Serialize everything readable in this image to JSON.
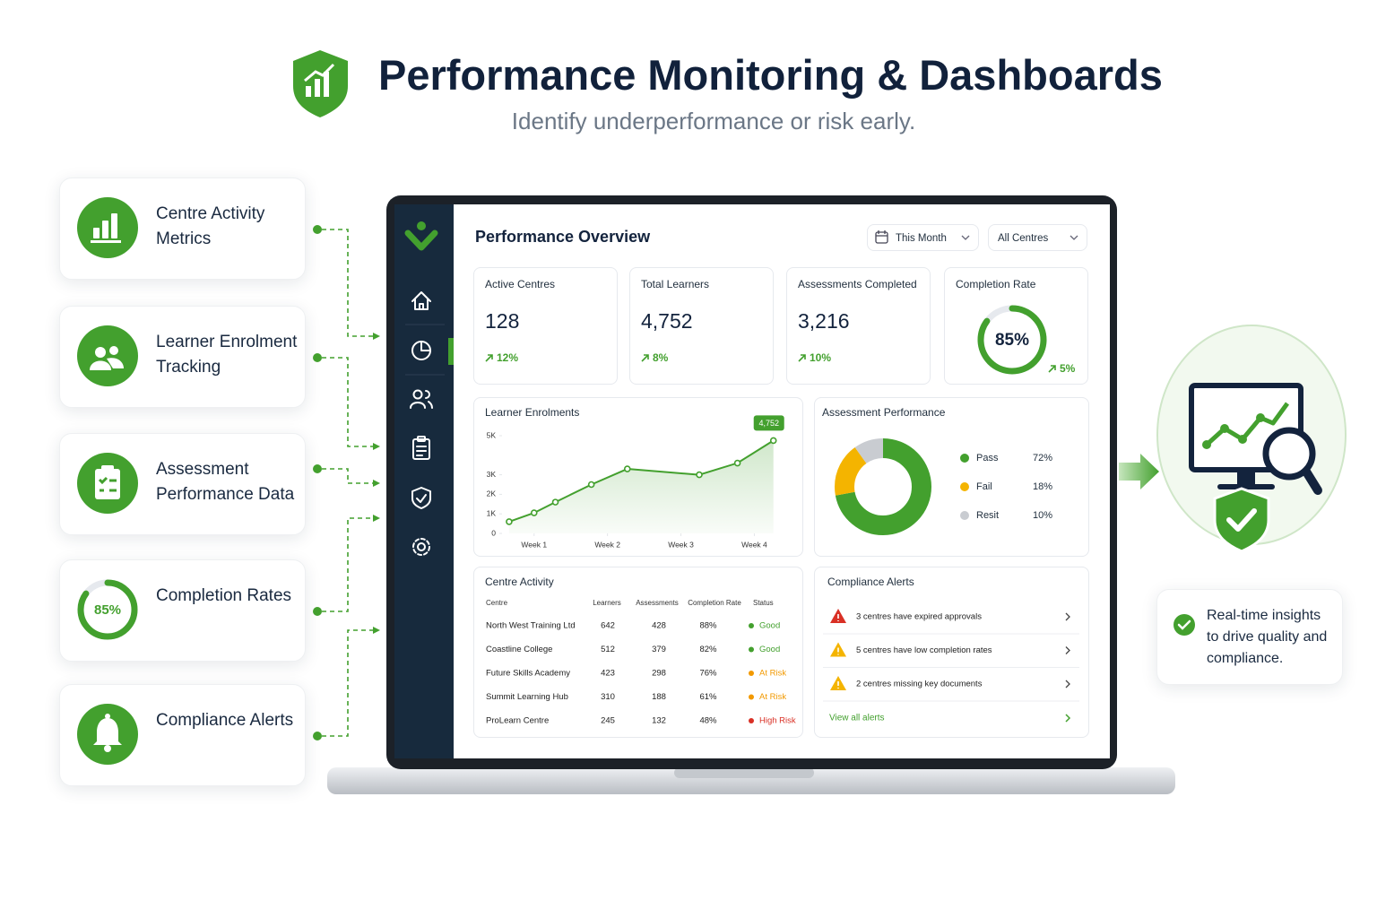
{
  "header": {
    "title": "Performance Monitoring & Dashboards",
    "subtitle": "Identify underperformance or risk early."
  },
  "features": [
    {
      "label": "Centre Activity Metrics"
    },
    {
      "label": "Learner Enrolment Tracking"
    },
    {
      "label": "Assessment Performance Data"
    },
    {
      "label": "Completion Rates",
      "badge": {
        "value": 85,
        "label": "85%"
      }
    },
    {
      "label": "Compliance Alerts"
    }
  ],
  "dashboard": {
    "title": "Performance Overview",
    "filters": [
      "This Month",
      "All Centres"
    ],
    "kpis": [
      {
        "label": "Active Centres",
        "value": "128",
        "change": "12%"
      },
      {
        "label": "Total Learners",
        "value": "4,752",
        "change": "8%"
      },
      {
        "label": "Assessments Completed",
        "value": "3,216",
        "change": "10%"
      },
      {
        "label": "Completion Rate",
        "value": {
          "value": 85,
          "label": "85%"
        },
        "change": "5%"
      }
    ],
    "enrolments": {
      "type": "line",
      "title": "Learner Enrolments",
      "x": [
        0.66,
        1.0,
        1.29,
        1.78,
        2.27,
        3.25,
        3.77,
        4.26
      ],
      "values": [
        600,
        1050,
        1600,
        2500,
        3300,
        3000,
        3600,
        4752
      ],
      "value_labels": [
        null,
        null,
        null,
        null,
        null,
        null,
        null,
        "4,752"
      ],
      "color": "#43a02e",
      "xlim": [
        0.6,
        4.3
      ],
      "xticks": [
        {
          "value": 1,
          "label": "Week 1"
        },
        {
          "value": 2,
          "label": "Week 2"
        },
        {
          "value": 3,
          "label": "Week 3"
        },
        {
          "value": 4,
          "label": "Week 4"
        }
      ],
      "ylim": [
        0,
        5000
      ],
      "yticks": [
        0,
        {
          "value": 1000,
          "label": "1K"
        },
        {
          "value": 2000,
          "label": "2K"
        },
        {
          "value": 3000,
          "label": "3K"
        },
        {
          "value": 5000,
          "label": "5K"
        }
      ],
      "grid": false
    },
    "assessment": {
      "type": "pie",
      "title": "Assessment Performance",
      "categories": [
        "Pass",
        "Fail",
        "Resit"
      ],
      "values": [
        72,
        18,
        10
      ],
      "value_labels": [
        "72%",
        "18%",
        "10%"
      ],
      "colors": [
        "#43a02e",
        "#f4b400",
        "#c9ccd1"
      ]
    },
    "centre_activity": {
      "title": "Centre Activity",
      "columns": [
        "Centre",
        "Learners",
        "Assessments",
        "Completion Rate",
        "Status"
      ],
      "rows": [
        {
          "cells": [
            "North West Training Ltd",
            "642",
            "428",
            "88%",
            "Good"
          ],
          "status_color": "#43a02e"
        },
        {
          "cells": [
            "Coastline College",
            "512",
            "379",
            "82%",
            "Good"
          ],
          "status_color": "#43a02e"
        },
        {
          "cells": [
            "Future Skills Academy",
            "423",
            "298",
            "76%",
            "At Risk"
          ],
          "status_color": "#f29900"
        },
        {
          "cells": [
            "Summit Learning Hub",
            "310",
            "188",
            "61%",
            "At Risk"
          ],
          "status_color": "#f29900"
        },
        {
          "cells": [
            "ProLearn Centre",
            "245",
            "132",
            "48%",
            "High Risk"
          ],
          "status_color": "#d93025"
        }
      ]
    },
    "alerts": {
      "title": "Compliance Alerts",
      "items": [
        {
          "text": "3 centres have expired approvals",
          "color": "#d93025"
        },
        {
          "text": "5 centres have low completion rates",
          "color": "#f4b400"
        },
        {
          "text": "2 centres missing key documents",
          "color": "#f4b400"
        }
      ],
      "link": "View all alerts"
    }
  },
  "callout": "Real-time insights to drive quality and compliance."
}
